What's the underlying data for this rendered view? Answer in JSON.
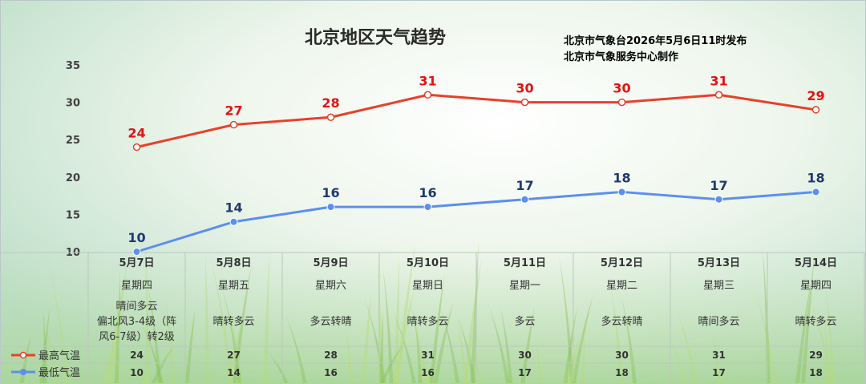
{
  "chart_data": {
    "type": "line",
    "title": "北京地区天气趋势",
    "source_lines": [
      "北京市气象台2026年5月6日11时发布",
      "北京市气象服务中心制作"
    ],
    "ylim": [
      10,
      35
    ],
    "yticks": [
      "10",
      "15",
      "20",
      "25",
      "30",
      "35"
    ],
    "categories": [
      "5月7日",
      "5月8日",
      "5月9日",
      "5月10日",
      "5月11日",
      "5月12日",
      "5月13日",
      "5月14日"
    ],
    "weekdays": [
      "星期四",
      "星期五",
      "星期六",
      "星期日",
      "星期一",
      "星期二",
      "星期三",
      "星期四"
    ],
    "weather": [
      [
        "晴间多云",
        "偏北风3-4级（阵",
        "风6-7级）转2级"
      ],
      [
        "晴转多云"
      ],
      [
        "多云转晴"
      ],
      [
        "晴转多云"
      ],
      [
        "多云"
      ],
      [
        "多云转晴"
      ],
      [
        "晴间多云"
      ],
      [
        "晴转多云"
      ]
    ],
    "series": [
      {
        "name": "最高气温",
        "color": "#e8402a",
        "label_color": "#e81010",
        "values": [
          24,
          27,
          28,
          31,
          30,
          30,
          31,
          29
        ]
      },
      {
        "name": "最低气温",
        "color": "#5b8ff0",
        "label_color": "#1f3a70",
        "values": [
          10,
          14,
          16,
          16,
          17,
          18,
          17,
          18
        ]
      }
    ],
    "legend": "bottom-left",
    "grid": false
  }
}
